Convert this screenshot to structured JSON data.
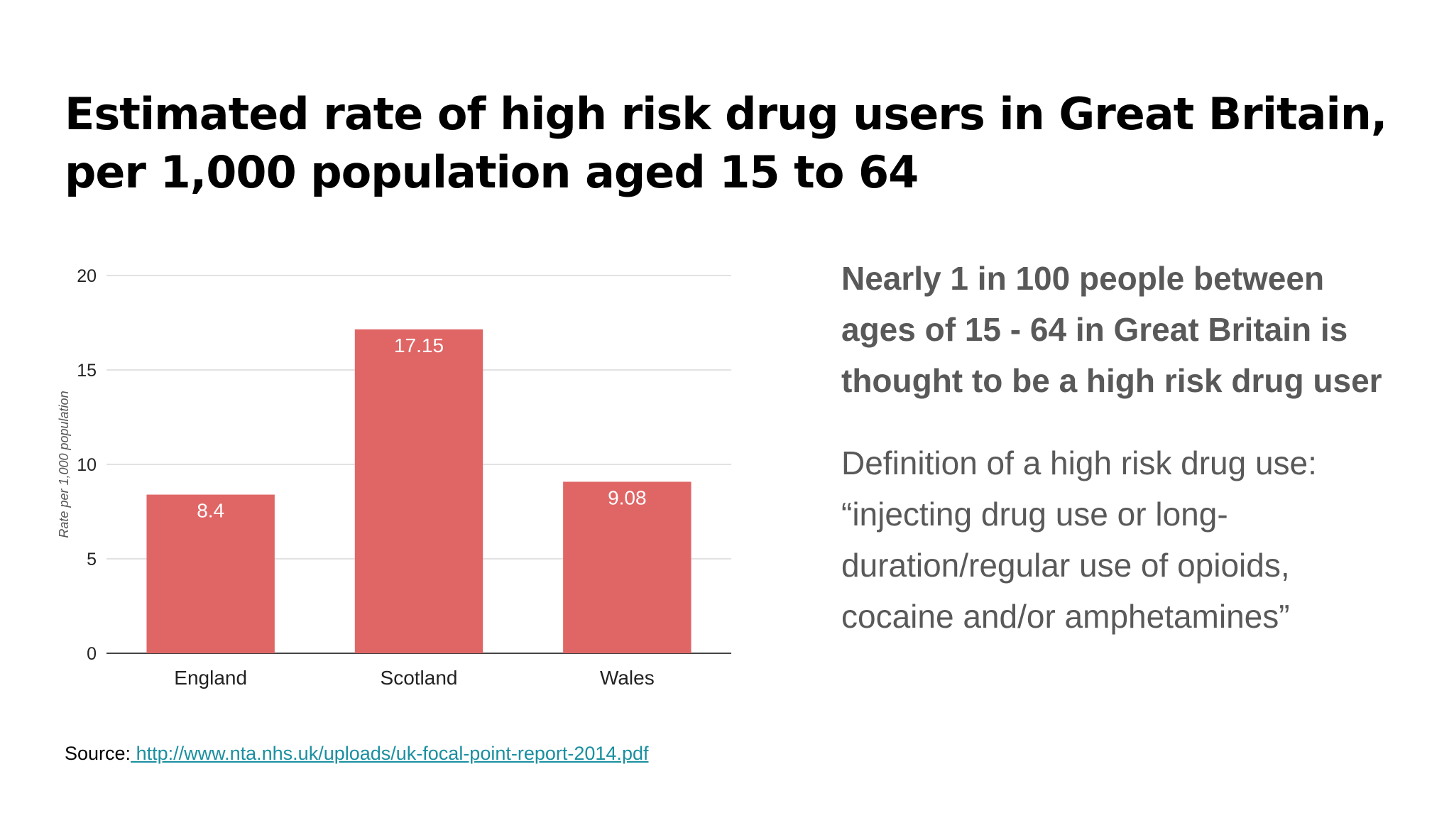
{
  "title": {
    "line1": "Estimated rate of high risk drug users in Great Britain,",
    "line2": "per 1,000 population aged 15 to 64"
  },
  "chart_data": {
    "type": "bar",
    "categories": [
      "England",
      "Scotland",
      "Wales"
    ],
    "values": [
      8.4,
      17.15,
      9.08
    ],
    "data_labels": [
      "8.4",
      "17.15",
      "9.08"
    ],
    "title": "",
    "xlabel": "",
    "ylabel": "Rate per 1,000 population",
    "ylim": [
      0,
      20
    ],
    "yticks": [
      0,
      5,
      10,
      15,
      20
    ],
    "grid": true,
    "bar_color": "#e06666",
    "data_label_color": "#ffffff",
    "legend": "none"
  },
  "side": {
    "headline_lines": [
      "Nearly 1 in 100 people between",
      "ages of 15 - 64 in Great Britain is",
      "thought to be a high risk drug user"
    ],
    "definition_lines": [
      "Definition of a high risk drug use:",
      "“injecting drug use or long-",
      "duration/regular use of opioids,",
      "cocaine and/or amphetamines”"
    ]
  },
  "source": {
    "label": "Source:",
    "link_text": " http://www.nta.nhs.uk/uploads/uk-focal-point-report-2014.pdf",
    "link_color": "#1a8fa0"
  }
}
